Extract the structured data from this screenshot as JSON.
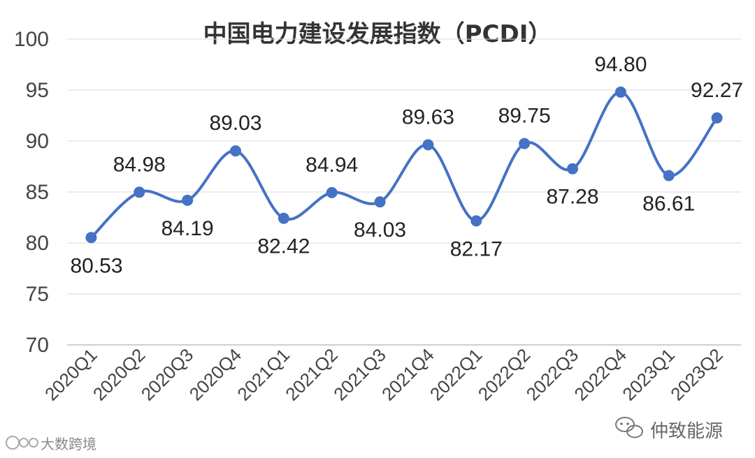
{
  "chart_data": {
    "type": "line",
    "title": "中国电力建设发展指数（PCDI）",
    "categories": [
      "2020Q1",
      "2020Q2",
      "2020Q3",
      "2020Q4",
      "2021Q1",
      "2021Q2",
      "2021Q3",
      "2021Q4",
      "2022Q1",
      "2022Q2",
      "2022Q3",
      "2022Q4",
      "2023Q1",
      "2023Q2"
    ],
    "series": [
      {
        "values": [
          80.53,
          84.98,
          84.19,
          89.03,
          82.42,
          84.94,
          84.03,
          89.63,
          82.17,
          89.75,
          87.28,
          94.8,
          86.61,
          92.27
        ]
      }
    ],
    "data_labels": [
      "80.53",
      "84.98",
      "84.19",
      "89.03",
      "82.42",
      "84.94",
      "84.03",
      "89.63",
      "82.17",
      "89.75",
      "87.28",
      "94.80",
      "86.61",
      "92.27"
    ],
    "label_positions": [
      "below",
      "above",
      "below",
      "above",
      "below",
      "above",
      "below",
      "above",
      "below",
      "above",
      "below",
      "above",
      "below",
      "above"
    ],
    "yticks": [
      70,
      75,
      80,
      85,
      90,
      95,
      100
    ],
    "ylim": [
      70,
      100
    ],
    "xlabel": "",
    "ylabel": "",
    "grid": true,
    "line_color": "#4472c4"
  },
  "watermarks": {
    "right": "仲致能源",
    "left": "大数跨境"
  }
}
